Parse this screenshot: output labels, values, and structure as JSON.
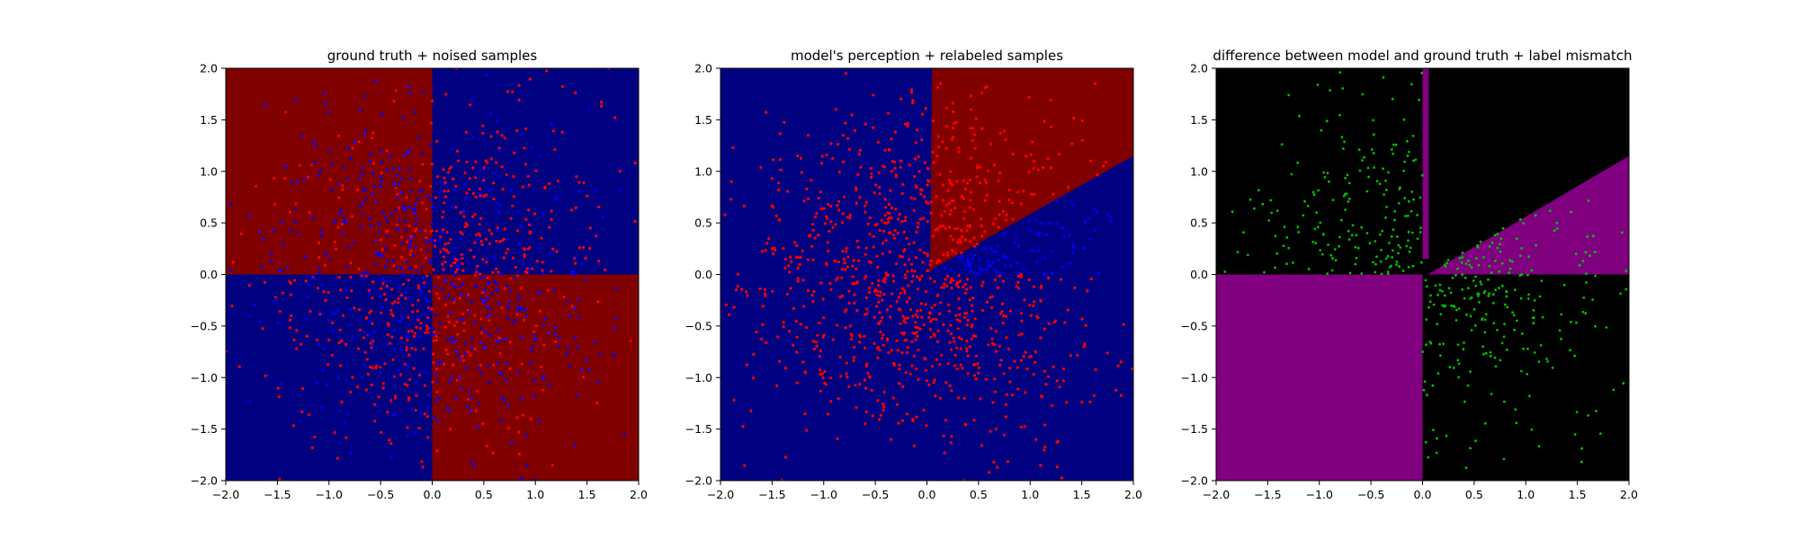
{
  "chart_data": [
    {
      "type": "scatter",
      "title": "ground truth + noised samples",
      "xlim": [
        -2.0,
        2.0
      ],
      "ylim": [
        -2.0,
        2.0
      ],
      "xticks": [
        "−2.0",
        "−1.5",
        "−1.0",
        "−0.5",
        "0.0",
        "0.5",
        "1.0",
        "1.5",
        "2.0"
      ],
      "yticks": [
        "−2.0",
        "−1.5",
        "−1.0",
        "−0.5",
        "0.0",
        "0.5",
        "1.0",
        "1.5",
        "2.0"
      ],
      "background": {
        "description": "quadrant regions",
        "regions": [
          {
            "x": [
              -2.0,
              0.0
            ],
            "y": [
              0.0,
              2.0
            ],
            "color": "#800000"
          },
          {
            "x": [
              0.0,
              2.0
            ],
            "y": [
              0.0,
              2.0
            ],
            "color": "#000080"
          },
          {
            "x": [
              -2.0,
              0.0
            ],
            "y": [
              -2.0,
              0.0
            ],
            "color": "#000080"
          },
          {
            "x": [
              0.0,
              2.0
            ],
            "y": [
              -2.0,
              0.0
            ],
            "color": "#800000"
          }
        ]
      },
      "series": [
        {
          "color": "#ff0000",
          "marker_size": 1.6,
          "count": 520,
          "distribution": "mostly in top-right and bottom-left quadrants, dense near x between 0 and 1"
        },
        {
          "color": "#0000ff",
          "marker_size": 1.6,
          "count": 520,
          "distribution": "mostly in top-left and bottom-right quadrants"
        }
      ]
    },
    {
      "type": "scatter",
      "title": "model's perception + relabeled samples",
      "xlim": [
        -2.0,
        2.0
      ],
      "ylim": [
        -2.0,
        2.0
      ],
      "xticks": [
        "−2.0",
        "−1.5",
        "−1.0",
        "−0.5",
        "0.0",
        "0.5",
        "1.0",
        "1.5",
        "2.0"
      ],
      "yticks": [
        "−2.0",
        "−1.5",
        "−1.0",
        "−0.5",
        "0.0",
        "0.5",
        "1.0",
        "1.5",
        "2.0"
      ],
      "background": {
        "base_color": "#000080",
        "wedge_color": "#800000",
        "wedge_polygon": [
          [
            0.05,
            2.0
          ],
          [
            2.0,
            2.0
          ],
          [
            2.0,
            1.15
          ],
          [
            0.05,
            0.05
          ],
          [
            0.03,
            0.0
          ]
        ]
      },
      "series": [
        {
          "color": "#ff0000",
          "marker_size": 1.6,
          "count": 780,
          "distribution": "spread across plot except lower wedge"
        },
        {
          "color": "#0000ff",
          "marker_size": 1.6,
          "count": 140,
          "distribution": "in wedge between y = 0 and line y ≈ 0.58·x"
        }
      ]
    },
    {
      "type": "scatter",
      "title": "difference between model and ground truth + label mismatch",
      "xlim": [
        -2.0,
        2.0
      ],
      "ylim": [
        -2.0,
        2.0
      ],
      "xticks": [
        "−2.0",
        "−1.5",
        "−1.0",
        "−0.5",
        "0.0",
        "0.5",
        "1.0",
        "1.5",
        "2.0"
      ],
      "yticks": [
        "−2.0",
        "−1.5",
        "−1.0",
        "−0.5",
        "0.0",
        "0.5",
        "1.0",
        "1.5",
        "2.0"
      ],
      "background": {
        "base_color": "#000000",
        "diff_color": "#800080",
        "regions": [
          {
            "polygon": [
              [
                -2.0,
                -2.0
              ],
              [
                0.0,
                -2.0
              ],
              [
                0.0,
                0.0
              ],
              [
                -2.0,
                0.0
              ]
            ]
          },
          {
            "polygon": [
              [
                0.05,
                0.0
              ],
              [
                2.0,
                0.0
              ],
              [
                2.0,
                1.15
              ]
            ]
          },
          {
            "polygon": [
              [
                0.0,
                0.15
              ],
              [
                0.06,
                0.15
              ],
              [
                0.06,
                2.0
              ],
              [
                0.0,
                2.0
              ]
            ]
          }
        ]
      },
      "series": [
        {
          "color": "#00c000",
          "marker_size": 1.4,
          "count": 620,
          "distribution": "in top-left and bottom-right quadrants and in wedge"
        }
      ]
    }
  ]
}
